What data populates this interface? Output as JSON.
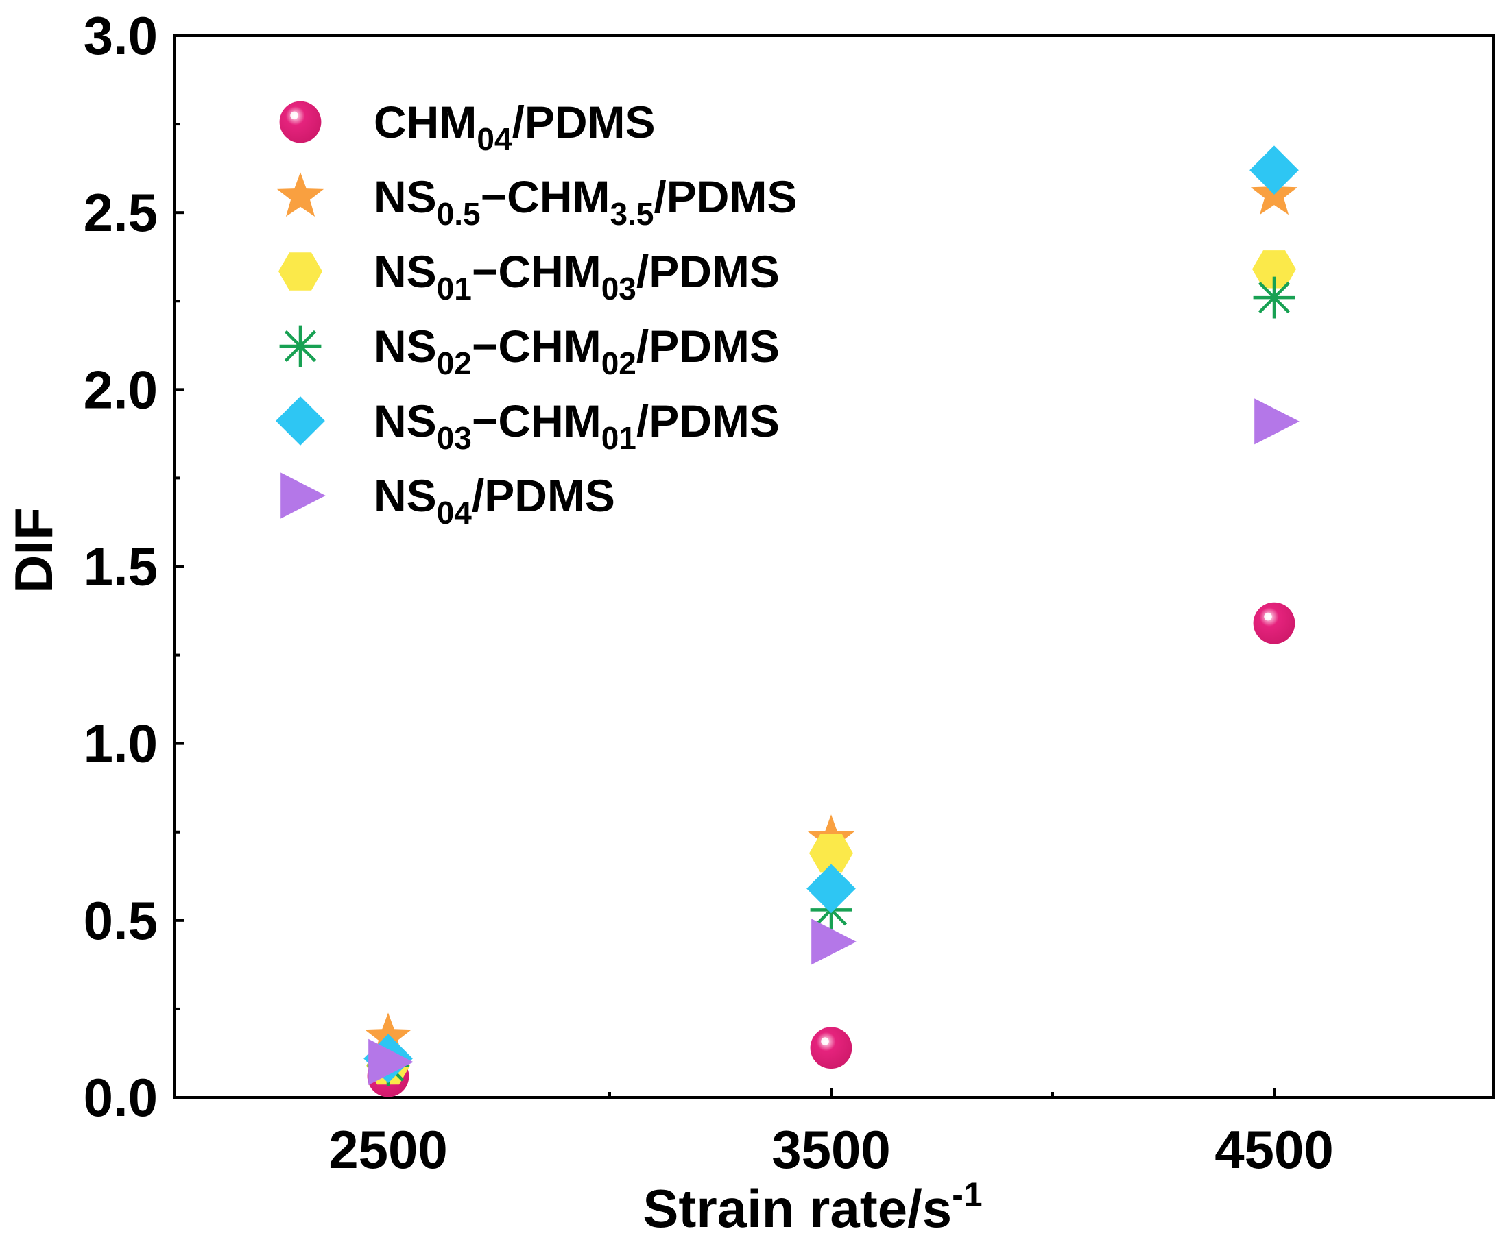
{
  "chart_data": {
    "type": "scatter",
    "title": "",
    "xlabel": "Strain rate/s",
    "xlabel_sup": "-1",
    "ylabel": "DIF",
    "x_categories": [
      "2500",
      "3500",
      "4500"
    ],
    "y_ticks": [
      "0.0",
      "0.5",
      "1.0",
      "1.5",
      "2.0",
      "2.5",
      "3.0"
    ],
    "ylim": [
      0,
      3.0
    ],
    "legend_position": "top-left",
    "series": [
      {
        "name": "CHM04/PDMS",
        "label_parts": [
          {
            "text": "CHM"
          },
          {
            "text": "04",
            "sub": true
          },
          {
            "text": "/PDMS"
          }
        ],
        "marker": "sphere",
        "color": "#E5237D",
        "values": [
          0.06,
          0.14,
          1.34
        ]
      },
      {
        "name": "NS0.5-CHM3.5/PDMS",
        "label_parts": [
          {
            "text": "NS"
          },
          {
            "text": "0.5",
            "sub": true
          },
          {
            "text": "−CHM"
          },
          {
            "text": "3.5",
            "sub": true
          },
          {
            "text": "/PDMS"
          }
        ],
        "marker": "star",
        "color": "#F9A040",
        "values": [
          0.17,
          0.73,
          2.55
        ]
      },
      {
        "name": "NS01-CHM03/PDMS",
        "label_parts": [
          {
            "text": "NS"
          },
          {
            "text": "01",
            "sub": true
          },
          {
            "text": "−CHM"
          },
          {
            "text": "03",
            "sub": true
          },
          {
            "text": "/PDMS"
          }
        ],
        "marker": "hexagon",
        "color": "#FBE94A",
        "values": [
          0.09,
          0.69,
          2.34
        ]
      },
      {
        "name": "NS02-CHM02/PDMS",
        "label_parts": [
          {
            "text": "NS"
          },
          {
            "text": "02",
            "sub": true
          },
          {
            "text": "−CHM"
          },
          {
            "text": "02",
            "sub": true
          },
          {
            "text": "/PDMS"
          }
        ],
        "marker": "asterisk",
        "color": "#18A153",
        "values": [
          0.09,
          0.53,
          2.26
        ]
      },
      {
        "name": "NS03-CHM01/PDMS",
        "label_parts": [
          {
            "text": "NS"
          },
          {
            "text": "03",
            "sub": true
          },
          {
            "text": "−CHM"
          },
          {
            "text": "01",
            "sub": true
          },
          {
            "text": "/PDMS"
          }
        ],
        "marker": "diamond",
        "color": "#2EC6F3",
        "values": [
          0.11,
          0.59,
          2.62
        ]
      },
      {
        "name": "NS04/PDMS",
        "label_parts": [
          {
            "text": "NS"
          },
          {
            "text": "04",
            "sub": true
          },
          {
            "text": "/PDMS"
          }
        ],
        "marker": "triangle-right",
        "color": "#B477E8",
        "values": [
          0.1,
          0.44,
          1.91
        ]
      }
    ]
  }
}
